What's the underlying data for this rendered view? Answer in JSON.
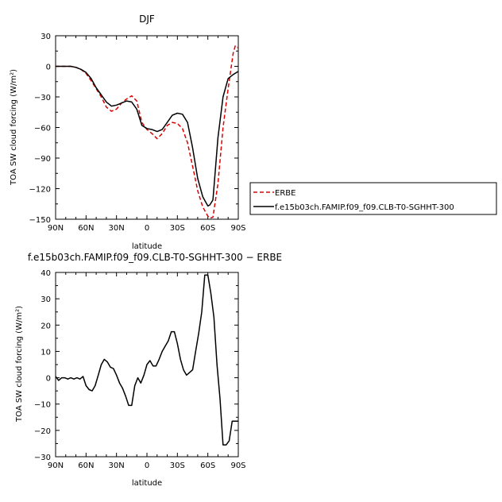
{
  "chart_data": [
    {
      "type": "line",
      "title": "DJF",
      "xlabel": "latitude",
      "ylabel": "TOA SW cloud forcing (W/m²)",
      "xlim": [
        90,
        -90
      ],
      "ylim": [
        -150,
        30
      ],
      "x_ticks": [
        90,
        60,
        30,
        0,
        -30,
        -60,
        -90
      ],
      "x_tick_labels": [
        "90N",
        "60N",
        "30N",
        "0",
        "30S",
        "60S",
        "90S"
      ],
      "y_ticks": [
        30,
        0,
        -30,
        -60,
        -90,
        -120,
        -150
      ],
      "y_tick_labels": [
        "30",
        "0",
        "−30",
        "−60",
        "−90",
        "−120",
        "−150"
      ],
      "legend_position": "right",
      "series": [
        {
          "name": "ERBE",
          "color": "#dd0000",
          "dash": "dashed",
          "x": [
            90,
            85,
            80,
            75,
            70,
            65,
            60,
            55,
            50,
            45,
            40,
            35,
            30,
            25,
            20,
            15,
            10,
            5,
            0,
            -5,
            -10,
            -15,
            -20,
            -25,
            -30,
            -35,
            -40,
            -45,
            -50,
            -55,
            -60,
            -62,
            -65,
            -70,
            -75,
            -80,
            -85,
            -87,
            -90
          ],
          "y": [
            0,
            0,
            0,
            0,
            -1,
            -3,
            -7,
            -14,
            -22,
            -30,
            -40,
            -44,
            -42,
            -36,
            -32,
            -29,
            -34,
            -55,
            -62,
            -66,
            -71,
            -66,
            -58,
            -55,
            -56,
            -61,
            -75,
            -98,
            -122,
            -138,
            -147,
            -149,
            -148,
            -115,
            -60,
            -22,
            13,
            20,
            18
          ]
        },
        {
          "name": "f.e15b03ch.FAMIP.f09_f09.CLB-T0-SGHHT-300",
          "color": "#000000",
          "dash": "solid",
          "x": [
            90,
            85,
            80,
            75,
            70,
            65,
            60,
            55,
            50,
            45,
            40,
            35,
            30,
            25,
            20,
            15,
            10,
            5,
            0,
            -5,
            -10,
            -15,
            -20,
            -25,
            -30,
            -35,
            -40,
            -45,
            -50,
            -55,
            -60,
            -62,
            -65,
            -70,
            -75,
            -80,
            -85,
            -90
          ],
          "y": [
            0,
            0,
            0,
            0,
            -1,
            -3,
            -6,
            -12,
            -21,
            -28,
            -35,
            -39,
            -38,
            -36,
            -34,
            -35,
            -42,
            -58,
            -61,
            -62,
            -64,
            -62,
            -55,
            -48,
            -46,
            -47,
            -55,
            -80,
            -110,
            -128,
            -137,
            -136,
            -131,
            -70,
            -30,
            -12,
            -8,
            -5
          ]
        }
      ]
    },
    {
      "type": "line",
      "title": "f.e15b03ch.FAMIP.f09_f09.CLB-T0-SGHHT-300 − ERBE",
      "xlabel": "latitude",
      "ylabel": "TOA SW cloud forcing (W/m²)",
      "xlim": [
        90,
        -90
      ],
      "ylim": [
        -30,
        40
      ],
      "x_ticks": [
        90,
        60,
        30,
        0,
        -30,
        -60,
        -90
      ],
      "x_tick_labels": [
        "90N",
        "60N",
        "30N",
        "0",
        "30S",
        "60S",
        "90S"
      ],
      "y_ticks": [
        40,
        30,
        20,
        10,
        0,
        -10,
        -20,
        -30
      ],
      "y_tick_labels": [
        "40",
        "30",
        "20",
        "10",
        "0",
        "−10",
        "−20",
        "−30"
      ],
      "series": [
        {
          "name": "",
          "color": "#000000",
          "dash": "solid",
          "x": [
            90,
            87,
            84,
            81,
            78,
            75,
            72,
            69,
            66,
            63,
            60,
            57,
            54,
            51,
            48,
            45,
            42,
            39,
            36,
            33,
            30,
            27,
            24,
            21,
            18,
            15,
            12,
            9,
            6,
            3,
            0,
            -3,
            -6,
            -9,
            -12,
            -15,
            -18,
            -21,
            -24,
            -27,
            -30,
            -33,
            -36,
            -39,
            -42,
            -45,
            -48,
            -51,
            -54,
            -57,
            -60,
            -63,
            -66,
            -69,
            -72,
            -75,
            -78,
            -81,
            -84,
            -87,
            -90
          ],
          "y": [
            0.5,
            -1,
            0,
            0,
            -0.5,
            0,
            -0.5,
            0,
            -0.5,
            0.5,
            -3,
            -4.5,
            -5,
            -3,
            1,
            5,
            7,
            6,
            4,
            3.5,
            1,
            -2,
            -4,
            -7,
            -10.5,
            -10.5,
            -3,
            0,
            -2,
            1,
            5,
            6.5,
            4.5,
            4.5,
            7,
            10,
            12,
            14,
            17.5,
            17.5,
            13,
            7,
            3,
            1,
            2,
            3,
            10,
            17,
            25,
            39,
            39,
            32,
            23,
            5,
            -8,
            -25.5,
            -25.5,
            -24,
            -16.5,
            -16.5,
            -16.5
          ]
        }
      ]
    }
  ]
}
